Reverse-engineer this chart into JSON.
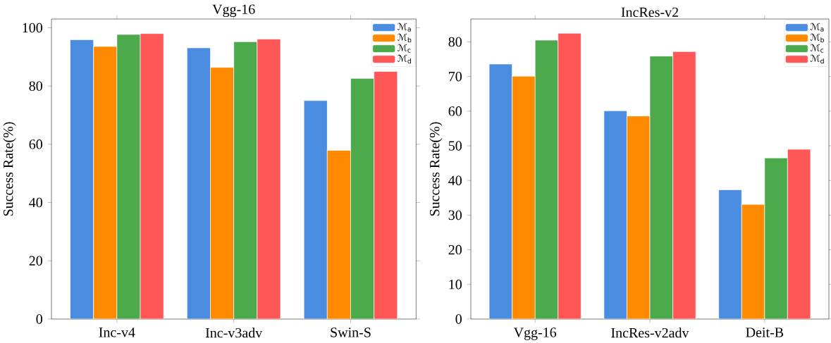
{
  "chart_data": [
    {
      "type": "bar",
      "title": "Vgg-16",
      "ylabel": "Success Rate(%)",
      "categories": [
        "Inc-v4",
        "Inc-v3adv",
        "Swin-S"
      ],
      "series": [
        {
          "name": "ℳ$_{a}$",
          "color": "#4a8ce0",
          "values": [
            95.9,
            93.1,
            75.0
          ]
        },
        {
          "name": "ℳ$_{b}$",
          "color": "#ff8a00",
          "values": [
            93.6,
            86.4,
            57.9
          ]
        },
        {
          "name": "ℳ$_{c}$",
          "color": "#4caa4c",
          "values": [
            97.7,
            95.2,
            82.6
          ]
        },
        {
          "name": "ℳ$_{d}$",
          "color": "#ff5656",
          "values": [
            98.0,
            96.1,
            85.0
          ]
        }
      ],
      "ylim": [
        0,
        103
      ],
      "yticks": [
        0,
        20,
        40,
        60,
        80,
        100
      ],
      "legend": "top right"
    },
    {
      "type": "bar",
      "title": "IncRes-v2",
      "ylabel": "Success Rate(%)",
      "categories": [
        "Vgg-16",
        "IncRes-v2adv",
        "Deit-B"
      ],
      "series": [
        {
          "name": "ℳ$_{a}$",
          "color": "#4a8ce0",
          "values": [
            73.6,
            60.1,
            37.3
          ]
        },
        {
          "name": "ℳ$_{b}$",
          "color": "#ff8a00",
          "values": [
            70.1,
            58.6,
            33.1
          ]
        },
        {
          "name": "ℳ$_{c}$",
          "color": "#4caa4c",
          "values": [
            80.5,
            75.9,
            46.5
          ]
        },
        {
          "name": "ℳ$_{d}$",
          "color": "#ff5656",
          "values": [
            82.5,
            77.2,
            49.0
          ]
        }
      ],
      "ylim": [
        0,
        86.6
      ],
      "yticks": [
        0,
        10,
        20,
        30,
        40,
        50,
        60,
        70,
        80
      ],
      "legend": "top right"
    }
  ]
}
